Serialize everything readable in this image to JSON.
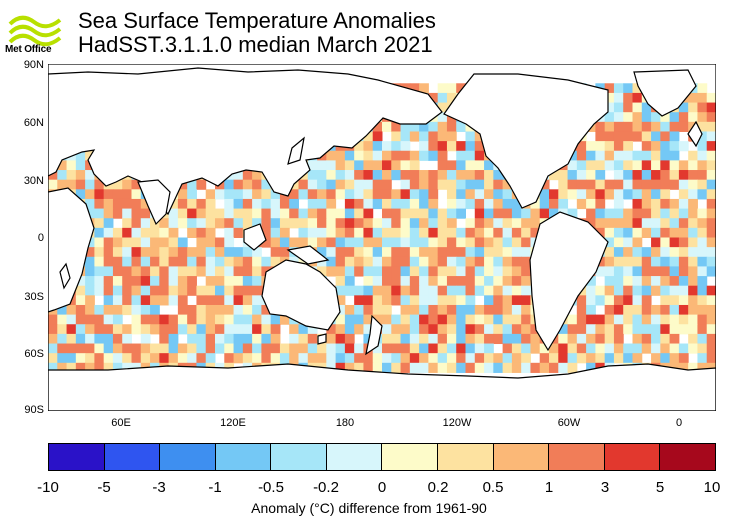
{
  "header": {
    "title_line1": "Sea Surface Temperature Anomalies",
    "title_line2": "HadSST.3.1.1.0 median March 2021",
    "logo_text": "Met Office"
  },
  "map": {
    "lat_labels": [
      "90N",
      "60N",
      "30N",
      "0",
      "30S",
      "60S",
      "90S"
    ],
    "lon_labels": [
      "60E",
      "120E",
      "180",
      "120W",
      "60W",
      "0"
    ]
  },
  "colorbar": {
    "tick_labels": [
      "-10",
      "-5",
      "-3",
      "-1",
      "-0.5",
      "-0.2",
      "0",
      "0.2",
      "0.5",
      "1",
      "3",
      "5",
      "10"
    ],
    "colors": [
      "#2a12c8",
      "#2f55f0",
      "#3e8ff0",
      "#74c8f5",
      "#a6e6f8",
      "#d7f6fb",
      "#fdfbc9",
      "#fde2a0",
      "#fbb877",
      "#f17d58",
      "#e2382e",
      "#a6081c"
    ],
    "title": "Anomaly (°C) difference from 1961-90"
  }
}
